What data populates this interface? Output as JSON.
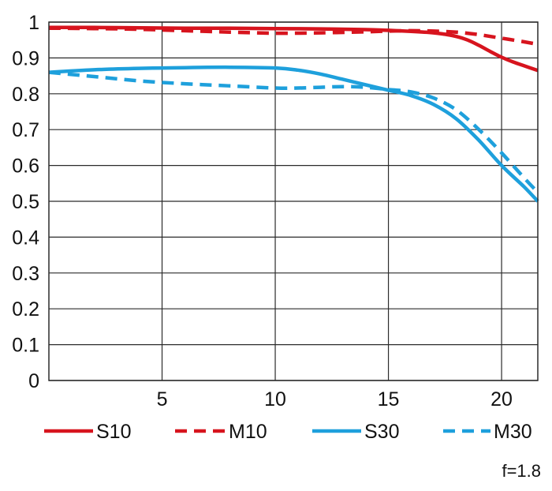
{
  "chart_data": {
    "type": "line",
    "title": "",
    "xlabel": "",
    "ylabel": "",
    "xlim": [
      0,
      21.6
    ],
    "ylim": [
      0,
      1
    ],
    "grid": true,
    "x_ticks": [
      5,
      10,
      15,
      20
    ],
    "x_tick_labels": [
      "5",
      "10",
      "15",
      "20"
    ],
    "y_ticks": [
      0,
      0.1,
      0.2,
      0.3,
      0.4,
      0.5,
      0.6,
      0.7,
      0.8,
      0.9,
      1
    ],
    "y_tick_labels": [
      "0",
      "0.1",
      "0.2",
      "0.3",
      "0.4",
      "0.5",
      "0.6",
      "0.7",
      "0.8",
      "0.9",
      "1"
    ],
    "legend_position": "bottom",
    "aperture_note": "f=1.8",
    "series": [
      {
        "name": "S10",
        "color": "#d7141e",
        "dashed": false,
        "x": [
          0,
          2,
          4,
          6,
          8,
          10,
          12,
          14,
          15,
          16,
          17,
          17.5,
          18,
          18.5,
          19,
          19.5,
          20,
          20.5,
          21,
          21.6
        ],
        "y": [
          0.985,
          0.985,
          0.984,
          0.983,
          0.983,
          0.982,
          0.981,
          0.979,
          0.977,
          0.974,
          0.97,
          0.966,
          0.96,
          0.95,
          0.935,
          0.918,
          0.902,
          0.889,
          0.878,
          0.865
        ]
      },
      {
        "name": "M10",
        "color": "#d7141e",
        "dashed": true,
        "x": [
          0,
          2,
          4,
          6,
          8,
          10,
          12,
          14,
          15,
          16,
          17,
          18,
          19,
          20,
          21,
          21.6
        ],
        "y": [
          0.983,
          0.982,
          0.98,
          0.976,
          0.972,
          0.969,
          0.97,
          0.973,
          0.975,
          0.976,
          0.975,
          0.972,
          0.965,
          0.955,
          0.945,
          0.938
        ]
      },
      {
        "name": "S30",
        "color": "#1ea0dc",
        "dashed": false,
        "x": [
          0,
          2,
          4,
          6,
          8,
          10,
          11,
          12,
          13,
          14,
          15,
          16,
          17,
          18,
          19,
          20,
          21,
          21.6
        ],
        "y": [
          0.86,
          0.867,
          0.871,
          0.873,
          0.874,
          0.872,
          0.866,
          0.855,
          0.84,
          0.825,
          0.81,
          0.795,
          0.77,
          0.73,
          0.67,
          0.6,
          0.54,
          0.5
        ]
      },
      {
        "name": "M30",
        "color": "#1ea0dc",
        "dashed": true,
        "x": [
          0,
          2,
          4,
          6,
          8,
          10,
          11,
          12,
          13,
          14,
          15,
          16,
          17,
          18,
          19,
          20,
          21,
          21.6
        ],
        "y": [
          0.86,
          0.848,
          0.836,
          0.828,
          0.822,
          0.816,
          0.816,
          0.818,
          0.82,
          0.818,
          0.812,
          0.805,
          0.788,
          0.755,
          0.7,
          0.635,
          0.565,
          0.525
        ]
      }
    ]
  }
}
